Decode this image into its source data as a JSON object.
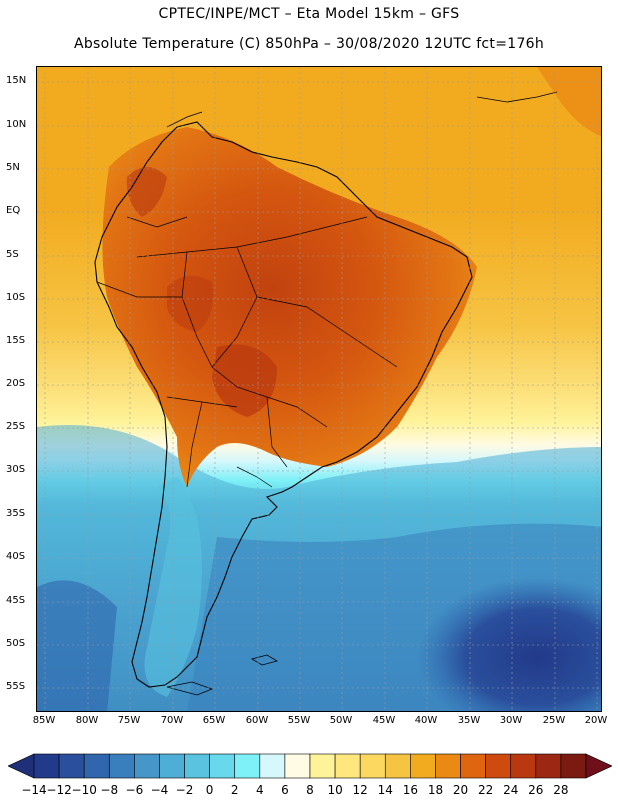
{
  "header": {
    "title_line1": "CPTEC/INPE/MCT –  Eta Model 15km – GFS",
    "title_line2": "Absolute Temperature (C) 850hPa – 30/08/2020 12UTC fct=176h"
  },
  "axes": {
    "lat_labels": [
      "15N",
      "10N",
      "5N",
      "EQ",
      "5S",
      "10S",
      "15S",
      "20S",
      "25S",
      "30S",
      "35S",
      "40S",
      "45S",
      "50S",
      "55S"
    ],
    "lon_labels": [
      "85W",
      "80W",
      "75W",
      "70W",
      "65W",
      "60W",
      "55W",
      "50W",
      "45W",
      "40W",
      "35W",
      "30W",
      "25W",
      "20W"
    ]
  },
  "legend": {
    "labels": [
      "-14",
      "-12",
      "-10",
      "-8",
      "-6",
      "-4",
      "-2",
      "0",
      "2",
      "4",
      "6",
      "8",
      "10",
      "12",
      "14",
      "16",
      "18",
      "20",
      "22",
      "24",
      "26",
      "28"
    ],
    "colors": [
      "#223a8a",
      "#2a4f9c",
      "#2f66ad",
      "#3a7fbd",
      "#4796c9",
      "#4faed5",
      "#59c3e0",
      "#68d8ec",
      "#7ef0f7",
      "#d6f7fb",
      "#fffbe4",
      "#fff39a",
      "#ffe77e",
      "#fcd860",
      "#f6c443",
      "#f2ab1f",
      "#ea8a14",
      "#df6510",
      "#cf4a0f",
      "#b9380f",
      "#9c2712",
      "#7a1a10"
    ],
    "low_arrow_color": "#1f2f78",
    "high_arrow_color": "#6e0f1a"
  }
}
